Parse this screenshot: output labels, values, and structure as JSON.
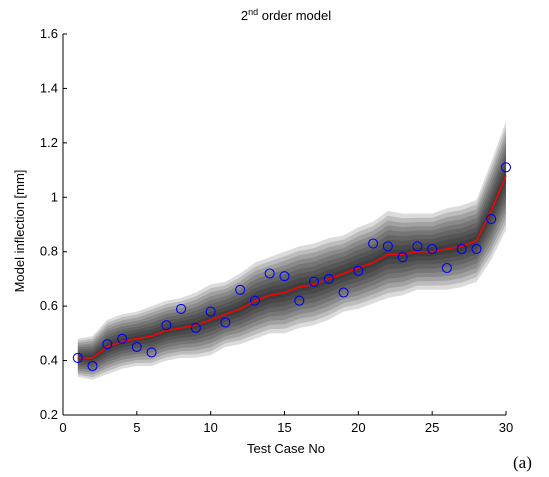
{
  "chart_data": {
    "type": "line",
    "title": "2nd order model",
    "title_main": "2",
    "title_sup": "nd",
    "title_rest": " order model",
    "xlabel": "Test Case No",
    "ylabel": "Model inflection [mm]",
    "panel_label": "(a)",
    "xlim": [
      0,
      30
    ],
    "ylim": [
      0.2,
      1.6
    ],
    "xticks": [
      0,
      5,
      10,
      15,
      20,
      25,
      30
    ],
    "yticks": [
      0.2,
      0.4,
      0.6,
      0.8,
      1.0,
      1.2,
      1.4,
      1.6
    ],
    "ytick_labels": [
      "0.2",
      "0.4",
      "0.6",
      "0.8",
      "1",
      "1.2",
      "1.4",
      "1.6"
    ],
    "grid": false,
    "series": [
      {
        "kind": "line",
        "color": "#ff0000",
        "x": [
          1,
          2,
          3,
          4,
          5,
          6,
          7,
          8,
          9,
          10,
          11,
          12,
          13,
          14,
          15,
          16,
          17,
          18,
          19,
          20,
          21,
          22,
          23,
          24,
          25,
          26,
          27,
          28,
          29,
          30
        ],
        "values": [
          0.41,
          0.41,
          0.45,
          0.47,
          0.48,
          0.49,
          0.51,
          0.52,
          0.53,
          0.55,
          0.57,
          0.59,
          0.62,
          0.64,
          0.65,
          0.67,
          0.68,
          0.7,
          0.72,
          0.74,
          0.76,
          0.79,
          0.79,
          0.8,
          0.8,
          0.81,
          0.82,
          0.84,
          0.95,
          1.08
        ]
      },
      {
        "kind": "scatter",
        "color": "#0000ff",
        "marker": "circle",
        "x": [
          1,
          2,
          3,
          4,
          5,
          6,
          7,
          8,
          9,
          10,
          11,
          12,
          13,
          14,
          15,
          16,
          17,
          18,
          19,
          20,
          21,
          22,
          23,
          24,
          25,
          26,
          27,
          28,
          29,
          30
        ],
        "values": [
          0.41,
          0.38,
          0.46,
          0.48,
          0.45,
          0.43,
          0.53,
          0.59,
          0.52,
          0.58,
          0.54,
          0.66,
          0.62,
          0.72,
          0.71,
          0.62,
          0.69,
          0.7,
          0.65,
          0.73,
          0.83,
          0.82,
          0.78,
          0.82,
          0.81,
          0.74,
          0.81,
          0.81,
          0.92,
          1.11
        ]
      }
    ],
    "uncertainty_band": {
      "color": "#000000",
      "x": [
        1,
        2,
        3,
        4,
        5,
        6,
        7,
        8,
        9,
        10,
        11,
        12,
        13,
        14,
        15,
        16,
        17,
        18,
        19,
        20,
        21,
        22,
        23,
        24,
        25,
        26,
        27,
        28,
        29,
        30
      ],
      "half_width": [
        0.07,
        0.08,
        0.1,
        0.1,
        0.1,
        0.11,
        0.11,
        0.11,
        0.12,
        0.13,
        0.12,
        0.13,
        0.14,
        0.14,
        0.15,
        0.15,
        0.15,
        0.15,
        0.14,
        0.15,
        0.15,
        0.16,
        0.15,
        0.14,
        0.14,
        0.15,
        0.15,
        0.15,
        0.18,
        0.2
      ]
    }
  }
}
